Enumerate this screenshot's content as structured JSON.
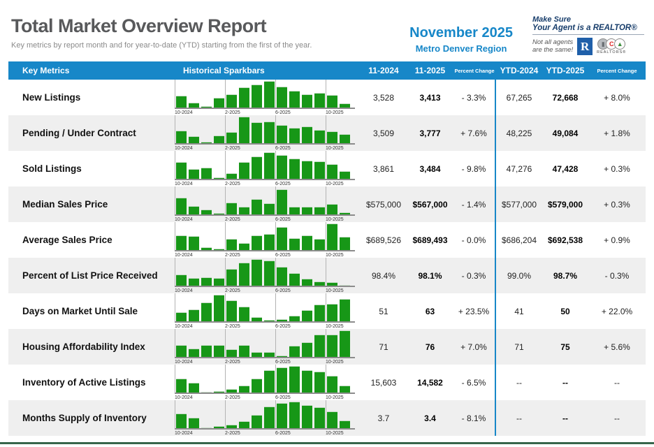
{
  "colors": {
    "accent_blue": "#1787c8",
    "bar_green": "#179717",
    "navy": "#173d6b",
    "footer_green": "#37654a"
  },
  "header": {
    "title": "Total Market Overview Report",
    "subtitle": "Key metrics by report month and for year-to-date (YTD) starting from the first of the year.",
    "report_month": "November 2025",
    "region": "Metro Denver Region",
    "logo": {
      "line1": "Make Sure",
      "line2": "Your Agent is a REALTOR®",
      "tagline_line1": "Not all agents",
      "tagline_line2": "are the same!",
      "realtor_r": "R",
      "car_building": "▮",
      "car_c": "C",
      "car_mountain": "▲",
      "car_caption": "REALTORS®"
    }
  },
  "table": {
    "columns": [
      "Key Metrics",
      "Historical Sparkbars",
      "11-2024",
      "11-2025",
      "Percent Change",
      "YTD-2024",
      "YTD-2025",
      "Percent Change"
    ],
    "rows": [
      {
        "metric": "New Listings",
        "m2024": "3,528",
        "m2025": "3,413",
        "pct": "- 3.3%",
        "ytd2024": "67,265",
        "ytd2025": "72,668",
        "ytd_pct": "+ 8.0%"
      },
      {
        "metric": "Pending / Under Contract",
        "m2024": "3,509",
        "m2025": "3,777",
        "pct": "+ 7.6%",
        "ytd2024": "48,225",
        "ytd2025": "49,084",
        "ytd_pct": "+ 1.8%"
      },
      {
        "metric": "Sold Listings",
        "m2024": "3,861",
        "m2025": "3,484",
        "pct": "- 9.8%",
        "ytd2024": "47,276",
        "ytd2025": "47,428",
        "ytd_pct": "+ 0.3%"
      },
      {
        "metric": "Median Sales Price",
        "m2024": "$575,000",
        "m2025": "$567,000",
        "pct": "- 1.4%",
        "ytd2024": "$577,000",
        "ytd2025": "$579,000",
        "ytd_pct": "+ 0.3%"
      },
      {
        "metric": "Average Sales Price",
        "m2024": "$689,526",
        "m2025": "$689,493",
        "pct": "- 0.0%",
        "ytd2024": "$686,204",
        "ytd2025": "$692,538",
        "ytd_pct": "+ 0.9%"
      },
      {
        "metric": "Percent of List Price Received",
        "m2024": "98.4%",
        "m2025": "98.1%",
        "pct": "- 0.3%",
        "ytd2024": "99.0%",
        "ytd2025": "98.7%",
        "ytd_pct": "- 0.3%"
      },
      {
        "metric": "Days on Market Until Sale",
        "m2024": "51",
        "m2025": "63",
        "pct": "+ 23.5%",
        "ytd2024": "41",
        "ytd2025": "50",
        "ytd_pct": "+ 22.0%"
      },
      {
        "metric": "Housing Affordability Index",
        "m2024": "71",
        "m2025": "76",
        "pct": "+ 7.0%",
        "ytd2024": "71",
        "ytd2025": "75",
        "ytd_pct": "+ 5.6%"
      },
      {
        "metric": "Inventory of Active Listings",
        "m2024": "15,603",
        "m2025": "14,582",
        "pct": "- 6.5%",
        "ytd2024": "--",
        "ytd2025": "--",
        "ytd_pct": "--"
      },
      {
        "metric": "Months Supply of Inventory",
        "m2024": "3.7",
        "m2025": "3.4",
        "pct": "- 8.1%",
        "ytd2024": "--",
        "ytd2025": "--",
        "ytd_pct": "--"
      }
    ]
  },
  "chart_data": {
    "type": "bar",
    "x": [
      "10-2024",
      "11-2024",
      "12-2024",
      "1-2025",
      "2-2025",
      "3-2025",
      "4-2025",
      "5-2025",
      "6-2025",
      "7-2025",
      "8-2025",
      "9-2025",
      "10-2025",
      "11-2025"
    ],
    "axis_tick_labels": [
      "10-2024",
      "2-2025",
      "6-2025",
      "10-2025"
    ],
    "axis_tick_indices": [
      0,
      4,
      8,
      12
    ],
    "ylim": [
      0,
      1
    ],
    "note": "relative sparkbar heights (0-1) per metric, Oct 2024 - Nov 2025",
    "series": [
      {
        "name": "New Listings",
        "values": [
          0.45,
          0.18,
          0.04,
          0.38,
          0.5,
          0.75,
          0.88,
          1.0,
          0.78,
          0.62,
          0.5,
          0.55,
          0.48,
          0.15
        ]
      },
      {
        "name": "Pending / Under Contract",
        "values": [
          0.48,
          0.25,
          0.05,
          0.28,
          0.42,
          1.0,
          0.8,
          0.82,
          0.68,
          0.58,
          0.62,
          0.5,
          0.45,
          0.35
        ]
      },
      {
        "name": "Sold Listings",
        "values": [
          0.62,
          0.38,
          0.42,
          0.04,
          0.22,
          0.62,
          0.85,
          1.0,
          0.9,
          0.75,
          0.68,
          0.65,
          0.55,
          0.28
        ]
      },
      {
        "name": "Median Sales Price",
        "values": [
          0.62,
          0.32,
          0.18,
          0.06,
          0.45,
          0.3,
          0.58,
          0.42,
          0.95,
          0.3,
          0.28,
          0.3,
          0.4,
          0.08
        ]
      },
      {
        "name": "Average Sales Price",
        "values": [
          0.55,
          0.52,
          0.1,
          0.04,
          0.42,
          0.25,
          0.55,
          0.6,
          0.88,
          0.45,
          0.55,
          0.42,
          1.0,
          0.5
        ]
      },
      {
        "name": "Percent of List Price Received",
        "values": [
          0.42,
          0.28,
          0.32,
          0.28,
          0.62,
          0.88,
          1.0,
          0.95,
          0.72,
          0.48,
          0.25,
          0.15,
          0.14,
          0.03
        ]
      },
      {
        "name": "Days on Market Until Sale",
        "values": [
          0.35,
          0.45,
          0.72,
          1.0,
          0.78,
          0.55,
          0.15,
          0.04,
          0.08,
          0.22,
          0.42,
          0.62,
          0.65,
          0.85
        ]
      },
      {
        "name": "Housing Affordability Index",
        "values": [
          0.45,
          0.32,
          0.45,
          0.45,
          0.3,
          0.45,
          0.18,
          0.18,
          0.05,
          0.42,
          0.55,
          0.85,
          0.85,
          1.0
        ]
      },
      {
        "name": "Inventory of Active Listings",
        "values": [
          0.52,
          0.38,
          0.02,
          0.06,
          0.12,
          0.25,
          0.52,
          0.85,
          0.95,
          1.0,
          0.85,
          0.78,
          0.62,
          0.25
        ]
      },
      {
        "name": "Months Supply of Inventory",
        "values": [
          0.55,
          0.4,
          0.03,
          0.07,
          0.12,
          0.25,
          0.5,
          0.82,
          0.95,
          1.0,
          0.88,
          0.78,
          0.62,
          0.28
        ]
      }
    ]
  }
}
